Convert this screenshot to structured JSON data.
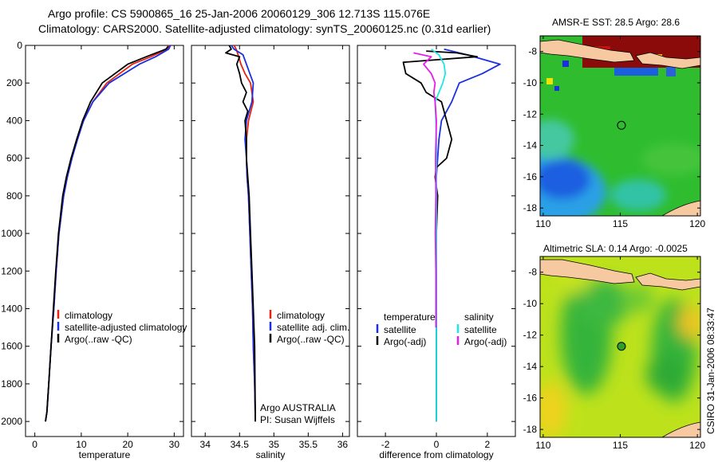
{
  "header": {
    "line1": "Argo profile: CS 5900865_16 25-Jan-2006 20060129_306 12.713S 115.076E",
    "line2": "Climatology: CARS2000. Satellite-adjusted climatology: synTS_20060125.nc (0.31d earlier)"
  },
  "side_label": "CSIRO 31-Jan-2006 08:33:47",
  "colors": {
    "red": "#e8230e",
    "blue": "#1a2fe0",
    "black": "#000000",
    "cyan": "#1ee6e6",
    "magenta": "#e61ee6"
  },
  "chart_data": [
    {
      "id": "temperature",
      "type": "line",
      "xlabel": "temperature",
      "ylabel": "",
      "xlim": [
        -2,
        32
      ],
      "ylim": [
        2080,
        0
      ],
      "x_ticks": [
        0,
        10,
        20,
        30
      ],
      "x_tick_labels": [
        "0",
        "10",
        "20",
        "30"
      ],
      "y_ticks": [
        0,
        200,
        400,
        600,
        800,
        1000,
        1200,
        1400,
        1600,
        1800,
        2000
      ],
      "y_tick_labels": [
        "0",
        "200",
        "400",
        "600",
        "800",
        "1000",
        "1200",
        "1400",
        "1600",
        "1800",
        "2000"
      ],
      "legend": {
        "placement": "lower-left",
        "entries": [
          "climatology",
          "satellite-adjusted climatology",
          "Argo(..raw -QC)"
        ]
      },
      "series": [
        {
          "name": "climatology",
          "color": "#e8230e",
          "x": [
            28.9,
            28.5,
            25,
            21,
            15.5,
            12.5,
            10.5,
            9,
            8,
            7,
            6.2,
            5.2,
            4.6,
            4.1,
            3.5,
            3.0,
            2.6,
            2.3
          ],
          "y": [
            0,
            20,
            60,
            100,
            200,
            300,
            400,
            500,
            600,
            700,
            800,
            1000,
            1200,
            1400,
            1600,
            1800,
            1950,
            2000
          ]
        },
        {
          "name": "satellite-adjusted climatology",
          "color": "#1a2fe0",
          "x": [
            29.2,
            28.8,
            26,
            22.5,
            16,
            12.5,
            10.5,
            9.2,
            8,
            7,
            6.2,
            5.2,
            4.6,
            4.1,
            3.5,
            3.0,
            2.6,
            2.3
          ],
          "y": [
            0,
            20,
            60,
            100,
            200,
            300,
            400,
            500,
            600,
            700,
            800,
            1000,
            1200,
            1400,
            1600,
            1800,
            1950,
            2000
          ]
        },
        {
          "name": "Argo(..raw -QC)",
          "color": "#000000",
          "x": [
            28.7,
            28.2,
            24,
            20,
            14.5,
            12,
            10.3,
            9,
            7.8,
            6.8,
            6.0,
            5.1,
            4.5,
            4.0,
            3.5,
            3.0,
            2.6,
            2.3
          ],
          "y": [
            5,
            20,
            60,
            100,
            200,
            300,
            400,
            500,
            600,
            700,
            800,
            1000,
            1200,
            1400,
            1600,
            1800,
            1950,
            2000
          ]
        }
      ]
    },
    {
      "id": "salinity",
      "type": "line",
      "xlabel": "salinity",
      "xlim": [
        33.8,
        36.1
      ],
      "ylim": [
        2080,
        0
      ],
      "x_ticks": [
        34,
        34.5,
        35,
        35.5,
        36
      ],
      "x_tick_labels": [
        "34",
        "34.5",
        "35",
        "35.5",
        "36"
      ],
      "legend": {
        "placement": "lower-right",
        "entries": [
          "climatology",
          "satellite adj. clim.",
          "Argo(..raw -QC)"
        ]
      },
      "annotation": [
        "Argo AUSTRALIA",
        "PI: Susan Wijffels"
      ],
      "series": [
        {
          "name": "climatology",
          "color": "#e8230e",
          "x": [
            34.42,
            34.45,
            34.48,
            34.52,
            34.58,
            34.66,
            34.7,
            34.63,
            34.6,
            34.6,
            34.61,
            34.63,
            34.65,
            34.67,
            34.69,
            34.7,
            34.72,
            34.73
          ],
          "y": [
            0,
            20,
            50,
            100,
            150,
            200,
            300,
            400,
            500,
            600,
            700,
            800,
            1000,
            1200,
            1400,
            1600,
            1800,
            2000
          ]
        },
        {
          "name": "satellite adj. clim.",
          "color": "#1a2fe0",
          "x": [
            34.38,
            34.42,
            34.55,
            34.6,
            34.65,
            34.7,
            34.68,
            34.6,
            34.58,
            34.6,
            34.61,
            34.63,
            34.65,
            34.67,
            34.69,
            34.7,
            34.72,
            34.73
          ],
          "y": [
            0,
            20,
            50,
            100,
            150,
            200,
            300,
            400,
            500,
            600,
            700,
            800,
            1000,
            1200,
            1400,
            1600,
            1800,
            2000
          ]
        },
        {
          "name": "Argo(..raw -QC)",
          "color": "#000000",
          "x": [
            34.35,
            34.38,
            34.3,
            34.5,
            34.46,
            34.5,
            34.53,
            34.6,
            34.55,
            34.62,
            34.58,
            34.6,
            34.6,
            34.62,
            34.64,
            34.66,
            34.68,
            34.7,
            34.72,
            34.73
          ],
          "y": [
            0,
            20,
            40,
            60,
            100,
            150,
            200,
            250,
            300,
            350,
            400,
            500,
            600,
            700,
            800,
            1000,
            1200,
            1400,
            1600,
            2000
          ]
        }
      ]
    },
    {
      "id": "difference",
      "type": "line",
      "xlabel": "difference from climatology",
      "xlim": [
        -3.1,
        3.1
      ],
      "ylim": [
        2080,
        0
      ],
      "x_ticks": [
        -2,
        0,
        2
      ],
      "x_tick_labels": [
        "-2",
        "0",
        "2"
      ],
      "legend": {
        "placement": "lower-center",
        "headers": [
          "temperature",
          "salinity"
        ],
        "entries": [
          "satellite",
          "Argo(-adj)",
          "satellite",
          "Argo(-adj)"
        ]
      },
      "series": [
        {
          "name": "temperature satellite",
          "color": "#1a2fe0",
          "x": [
            0.3,
            1.2,
            2.5,
            1.8,
            0.9,
            0.6,
            0.2,
            0.1,
            0.05,
            0.0,
            -0.02,
            0.0,
            0.0,
            0.0,
            0.0,
            0.0
          ],
          "y": [
            20,
            50,
            100,
            150,
            200,
            300,
            400,
            500,
            600,
            700,
            800,
            1000,
            1200,
            1400,
            1600,
            2000
          ]
        },
        {
          "name": "temperature Argo(-adj)",
          "color": "#000000",
          "x": [
            -0.4,
            0.8,
            1.6,
            -1.3,
            -1.2,
            -0.6,
            -0.4,
            0.2,
            0.3,
            0.4,
            0.6,
            0.4,
            0.0,
            -0.05,
            0.05,
            0.0,
            0.0,
            0.0,
            0.0,
            0.0
          ],
          "y": [
            30,
            40,
            60,
            90,
            150,
            200,
            250,
            300,
            350,
            400,
            500,
            600,
            650,
            700,
            800,
            1000,
            1200,
            1400,
            1600,
            2000
          ]
        },
        {
          "name": "salinity satellite",
          "color": "#1ee6e6",
          "x": [
            -0.2,
            0.1,
            0.3,
            0.35,
            0.25,
            -0.05,
            -0.02,
            0.0,
            0.0,
            0.0,
            0.0,
            0.0
          ],
          "y": [
            20,
            50,
            100,
            150,
            200,
            300,
            400,
            500,
            700,
            1000,
            1500,
            2000
          ]
        },
        {
          "name": "salinity Argo(-adj)",
          "color": "#e61ee6",
          "x": [
            -0.9,
            -0.2,
            -0.5,
            -0.2,
            -0.05,
            -0.1,
            -0.05,
            0.0,
            -0.03,
            -0.02,
            -0.04,
            -0.02,
            -0.02
          ],
          "y": [
            40,
            60,
            100,
            150,
            200,
            250,
            300,
            400,
            600,
            800,
            1000,
            1200,
            1500
          ]
        }
      ]
    },
    {
      "id": "sst-map",
      "type": "heatmap",
      "title": "AMSR-E SST: 28.5 Argo: 28.6",
      "xlim": [
        109.8,
        120.2
      ],
      "ylim": [
        -18.5,
        -7.0
      ],
      "x_ticks": [
        110,
        115,
        120
      ],
      "x_tick_labels": [
        "110",
        "115",
        "120"
      ],
      "y_ticks": [
        -8,
        -10,
        -12,
        -14,
        -16,
        -18
      ],
      "y_tick_labels": [
        "-8",
        "-10",
        "-12",
        "-14",
        "-16",
        "-18"
      ],
      "marker": {
        "lon": 115.076,
        "lat": -12.713
      }
    },
    {
      "id": "sla-map",
      "type": "heatmap",
      "title": "Altimetric SLA: 0.14 Argo: -0.0025",
      "xlim": [
        109.8,
        120.2
      ],
      "ylim": [
        -18.5,
        -7.0
      ],
      "x_ticks": [
        110,
        115,
        120
      ],
      "x_tick_labels": [
        "110",
        "115",
        "120"
      ],
      "y_ticks": [
        -8,
        -10,
        -12,
        -14,
        -16,
        -18
      ],
      "y_tick_labels": [
        "-8",
        "-10",
        "-12",
        "-14",
        "-16",
        "-18"
      ],
      "marker": {
        "lon": 115.076,
        "lat": -12.713
      }
    }
  ]
}
